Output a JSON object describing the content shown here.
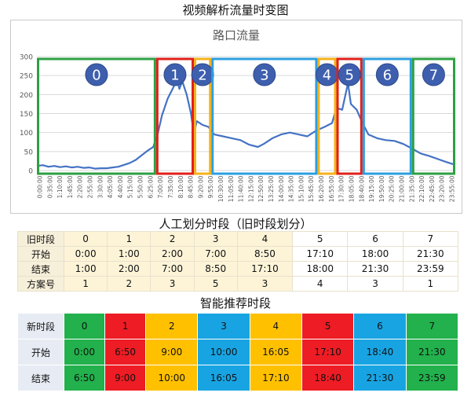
{
  "title": "视频解析流量时变图",
  "chart_data": {
    "type": "line",
    "title": "路口流量",
    "ylim": [
      0,
      300
    ],
    "yticks": [
      0,
      50,
      100,
      150,
      200,
      250,
      300
    ],
    "xtick_labels": [
      "0:00:00",
      "0:35:00",
      "1:10:00",
      "1:45:00",
      "2:20:00",
      "2:55:00",
      "3:30:00",
      "4:05:00",
      "4:40:00",
      "5:15:00",
      "5:50:00",
      "6:25:00",
      "7:00:00",
      "7:35:00",
      "8:10:00",
      "8:45:00",
      "9:20:00",
      "9:55:00",
      "10:30:00",
      "11:05:00",
      "11:40:00",
      "12:15:00",
      "12:50:00",
      "13:25:00",
      "14:00:00",
      "14:35:00",
      "15:10:00",
      "15:45:00",
      "16:20:00",
      "16:55:00",
      "17:30:00",
      "18:05:00",
      "18:40:00",
      "19:15:00",
      "19:50:00",
      "20:25:00",
      "21:00:00",
      "21:35:00",
      "22:10:00",
      "22:45:00",
      "23:20:00",
      "23:55:00"
    ],
    "line_color": "#4472c4",
    "series": [
      {
        "values": [
          {
            "t": "0:00",
            "v": 12
          },
          {
            "t": "0:20",
            "v": 14
          },
          {
            "t": "0:40",
            "v": 10
          },
          {
            "t": "1:00",
            "v": 12
          },
          {
            "t": "1:20",
            "v": 9
          },
          {
            "t": "1:40",
            "v": 11
          },
          {
            "t": "2:00",
            "v": 8
          },
          {
            "t": "2:20",
            "v": 10
          },
          {
            "t": "2:40",
            "v": 7
          },
          {
            "t": "3:00",
            "v": 8
          },
          {
            "t": "3:20",
            "v": 5
          },
          {
            "t": "3:40",
            "v": 6
          },
          {
            "t": "4:00",
            "v": 6
          },
          {
            "t": "4:20",
            "v": 8
          },
          {
            "t": "4:40",
            "v": 10
          },
          {
            "t": "5:00",
            "v": 15
          },
          {
            "t": "5:20",
            "v": 20
          },
          {
            "t": "5:40",
            "v": 28
          },
          {
            "t": "6:00",
            "v": 40
          },
          {
            "t": "6:20",
            "v": 52
          },
          {
            "t": "6:40",
            "v": 62
          },
          {
            "t": "6:55",
            "v": 95
          },
          {
            "t": "7:10",
            "v": 145
          },
          {
            "t": "7:30",
            "v": 190
          },
          {
            "t": "7:50",
            "v": 220
          },
          {
            "t": "8:00",
            "v": 248
          },
          {
            "t": "8:10",
            "v": 215
          },
          {
            "t": "8:20",
            "v": 235
          },
          {
            "t": "8:35",
            "v": 200
          },
          {
            "t": "8:50",
            "v": 150
          },
          {
            "t": "9:00",
            "v": 95
          },
          {
            "t": "9:10",
            "v": 130
          },
          {
            "t": "9:30",
            "v": 120
          },
          {
            "t": "9:50",
            "v": 115
          },
          {
            "t": "10:10",
            "v": 95
          },
          {
            "t": "10:40",
            "v": 90
          },
          {
            "t": "11:10",
            "v": 85
          },
          {
            "t": "11:40",
            "v": 80
          },
          {
            "t": "12:10",
            "v": 68
          },
          {
            "t": "12:40",
            "v": 62
          },
          {
            "t": "13:00",
            "v": 70
          },
          {
            "t": "13:30",
            "v": 85
          },
          {
            "t": "14:00",
            "v": 95
          },
          {
            "t": "14:30",
            "v": 100
          },
          {
            "t": "15:00",
            "v": 95
          },
          {
            "t": "15:30",
            "v": 90
          },
          {
            "t": "16:00",
            "v": 105
          },
          {
            "t": "16:30",
            "v": 115
          },
          {
            "t": "16:55",
            "v": 125
          },
          {
            "t": "17:10",
            "v": 165
          },
          {
            "t": "17:30",
            "v": 160
          },
          {
            "t": "17:50",
            "v": 230
          },
          {
            "t": "18:00",
            "v": 175
          },
          {
            "t": "18:20",
            "v": 160
          },
          {
            "t": "18:40",
            "v": 125
          },
          {
            "t": "19:00",
            "v": 95
          },
          {
            "t": "19:30",
            "v": 85
          },
          {
            "t": "20:00",
            "v": 80
          },
          {
            "t": "20:30",
            "v": 78
          },
          {
            "t": "21:00",
            "v": 70
          },
          {
            "t": "21:30",
            "v": 58
          },
          {
            "t": "22:00",
            "v": 45
          },
          {
            "t": "22:30",
            "v": 38
          },
          {
            "t": "23:00",
            "v": 30
          },
          {
            "t": "23:30",
            "v": 22
          },
          {
            "t": "23:55",
            "v": 16
          }
        ]
      }
    ],
    "segments": [
      {
        "label": "0",
        "start": "0:00",
        "end": "6:50",
        "color": "#2ea043"
      },
      {
        "label": "1",
        "start": "6:50",
        "end": "9:00",
        "color": "#e0201b"
      },
      {
        "label": "2",
        "start": "9:00",
        "end": "10:00",
        "color": "#f5b21b"
      },
      {
        "label": "3",
        "start": "10:00",
        "end": "16:05",
        "color": "#2c9fe0"
      },
      {
        "label": "4",
        "start": "16:05",
        "end": "17:10",
        "color": "#f5b21b"
      },
      {
        "label": "5",
        "start": "17:10",
        "end": "18:40",
        "color": "#e0201b"
      },
      {
        "label": "6",
        "start": "18:40",
        "end": "21:30",
        "color": "#2c9fe0"
      },
      {
        "label": "7",
        "start": "21:30",
        "end": "23:59",
        "color": "#2ea043"
      }
    ]
  },
  "manual": {
    "title": "人工划分时段（旧时段划分）",
    "headers": [
      "旧时段",
      "开始",
      "结束",
      "方案号"
    ],
    "rows": [
      [
        "0",
        "0:00",
        "1:00",
        "1"
      ],
      [
        "1",
        "1:00",
        "2:00",
        "2"
      ],
      [
        "2",
        "2:00",
        "7:00",
        "3"
      ],
      [
        "3",
        "7:00",
        "8:50",
        "5"
      ],
      [
        "4",
        "8:50",
        "17:10",
        "3"
      ],
      [
        "5",
        "17:10",
        "18:00",
        "4"
      ],
      [
        "6",
        "18:00",
        "21:30",
        "3"
      ],
      [
        "7",
        "21:30",
        "23:59",
        "1"
      ]
    ]
  },
  "smart": {
    "title": "智能推荐时段",
    "headers": [
      "新时段",
      "开始",
      "结束"
    ],
    "colors": [
      "#22b14c",
      "#ee1c24",
      "#ffc000",
      "#18a4e3",
      "#ffc000",
      "#ee1c24",
      "#18a4e3",
      "#22b14c"
    ],
    "rows": [
      [
        "0",
        "0:00",
        "6:50"
      ],
      [
        "1",
        "6:50",
        "9:00"
      ],
      [
        "2",
        "9:00",
        "10:00"
      ],
      [
        "3",
        "10:00",
        "16:05"
      ],
      [
        "4",
        "16:05",
        "17:10"
      ],
      [
        "5",
        "17:10",
        "18:40"
      ],
      [
        "6",
        "18:40",
        "21:30"
      ],
      [
        "7",
        "21:30",
        "23:59"
      ]
    ]
  }
}
